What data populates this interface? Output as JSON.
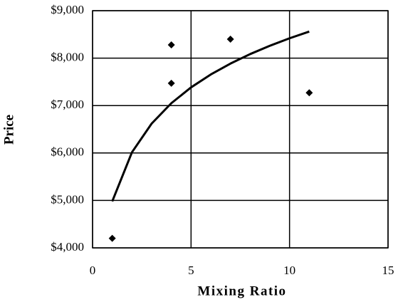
{
  "chart_data": {
    "type": "scatter",
    "xlabel": "Mixing Ratio",
    "ylabel": "Price",
    "xlim": [
      0,
      15
    ],
    "xticks": [
      0,
      5,
      10,
      15
    ],
    "ylim": [
      4000,
      9000
    ],
    "yticks": [
      {
        "value": 4000,
        "label": "$4,000"
      },
      {
        "value": 5000,
        "label": "$5,000"
      },
      {
        "value": 6000,
        "label": "$6,000"
      },
      {
        "value": 7000,
        "label": "$7,000"
      },
      {
        "value": 8000,
        "label": "$8,000"
      },
      {
        "value": 9000,
        "label": "$9,000"
      }
    ],
    "grid": true,
    "series": [
      {
        "x": [
          1,
          4,
          4,
          7,
          11
        ],
        "values": [
          4200,
          8280,
          7470,
          8400,
          7270
        ],
        "marker": "diamond",
        "color": "#000000"
      },
      {
        "x": [
          1,
          2,
          3,
          4,
          5,
          6,
          7,
          8,
          9,
          10,
          11
        ],
        "values": [
          4980,
          6015,
          6620,
          7050,
          7383,
          7655,
          7885,
          8085,
          8260,
          8418,
          8560
        ],
        "marker": "line",
        "color": "#000000"
      }
    ]
  }
}
